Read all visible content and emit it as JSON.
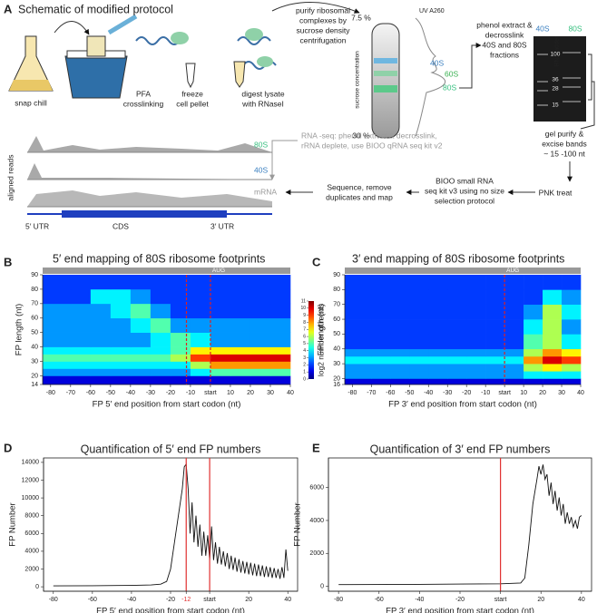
{
  "panel_a": {
    "label": "A",
    "title": "Schematic of modified protocol",
    "snap_chill": "snap chill",
    "pfa": [
      "PFA",
      "crosslinking"
    ],
    "freeze": [
      "freeze",
      "cell pellet"
    ],
    "digest": [
      "digest lysate",
      "with RNaseI"
    ],
    "purify": [
      "purify ribosomal",
      "complexes by",
      "sucrose density",
      "centrifugation"
    ],
    "gradient_top": "7.5 %",
    "gradient_bottom": "30 %",
    "gradient_axis": "sucrose concentration",
    "uv": "UV A260",
    "peaks": [
      "40S",
      "60S",
      "80S"
    ],
    "phenol": [
      "phenol extract &",
      "decrosslink",
      "40S and 80S",
      "fractions"
    ],
    "gel_lanes": [
      "40S",
      "RNA ladder",
      "80S"
    ],
    "ladder": [
      "100",
      "36",
      "28",
      "15"
    ],
    "gel_purify": [
      "gel purify &",
      "excise bands",
      "~ 15 -100 nt"
    ],
    "pnk": "PNK treat",
    "bioo": [
      "BIOO small RNA",
      "seq kit v3 using no size",
      "selection protocol"
    ],
    "sequence": [
      "Sequence, remove",
      "duplicates and map"
    ],
    "rnaseq": [
      "RNA -seq: phenol extract & decrosslink,",
      "rRNA deplete,  use BIOO qRNA seq kit v2"
    ],
    "tracks": [
      "80S",
      "40S",
      "mRNA"
    ],
    "tracks_axis": "aligned reads",
    "gene": [
      "5′ UTR",
      "CDS",
      "3′ UTR"
    ]
  },
  "chart_data": [
    {
      "type": "heatmap",
      "label": "B",
      "title": "5′ end mapping of 80S ribosome footprints",
      "xlabel": "FP 5′ end position from start codon (nt)",
      "ylabel": "FP length (nt)",
      "top_bar_label": "AUG",
      "x_edges": [
        -84,
        -70,
        -60,
        -50,
        -40,
        -30,
        -20,
        -10,
        0,
        10,
        20,
        30,
        40
      ],
      "y_edges": [
        14,
        20,
        25,
        30,
        35,
        40,
        50,
        60,
        70,
        80,
        90
      ],
      "values": [
        [
          1,
          1,
          1,
          1,
          1,
          1,
          1,
          1,
          1,
          1,
          1,
          1
        ],
        [
          3,
          3,
          3,
          3,
          3,
          3,
          3,
          4,
          5,
          5,
          5,
          5
        ],
        [
          4,
          4,
          4,
          4,
          4,
          4,
          4,
          6,
          8,
          8,
          8,
          8
        ],
        [
          5,
          5,
          5,
          5,
          5,
          5,
          6,
          9,
          10,
          10,
          10,
          10
        ],
        [
          4,
          4,
          4,
          4,
          4,
          4,
          5,
          7,
          7,
          7,
          7,
          7
        ],
        [
          3,
          3,
          3,
          3,
          3,
          4,
          5,
          4,
          3,
          3,
          3,
          3
        ],
        [
          3,
          3,
          3,
          3,
          4,
          5,
          3,
          3,
          3,
          3,
          3,
          3
        ],
        [
          3,
          3,
          3,
          4,
          5,
          3,
          2,
          2,
          2,
          2,
          2,
          2
        ],
        [
          2,
          2,
          4,
          4,
          3,
          2,
          2,
          2,
          2,
          2,
          2,
          2
        ],
        [
          2,
          2,
          2,
          2,
          2,
          2,
          2,
          2,
          2,
          2,
          2,
          2
        ]
      ],
      "xlim": [
        -84,
        40
      ],
      "ylim": [
        14,
        90
      ],
      "xticks": [
        -80,
        -70,
        -60,
        -50,
        -40,
        -30,
        -20,
        -10,
        {
          "value": 0,
          "label": "start"
        },
        10,
        20,
        30,
        40
      ],
      "yticks": [
        14,
        20,
        30,
        40,
        50,
        60,
        70,
        80,
        90
      ],
      "vlines": [
        -12,
        0
      ],
      "vline_color": "#e02020",
      "vline_dashed": true,
      "colorbar": {
        "label": "log2 number of reads",
        "lim": [
          0,
          11
        ],
        "ticks": [
          0,
          1,
          2,
          3,
          4,
          5,
          6,
          7,
          8,
          9,
          10,
          11
        ]
      }
    },
    {
      "type": "heatmap",
      "label": "C",
      "title": "3′ end mapping of 80S ribosome footprints",
      "xlabel": "FP 3′ end position from start codon (nt)",
      "ylabel": "FP length (nt)",
      "top_bar_label": "AUG",
      "x_edges": [
        -84,
        -70,
        -60,
        -50,
        -40,
        -30,
        -20,
        -10,
        0,
        10,
        20,
        30,
        40
      ],
      "y_edges": [
        16,
        20,
        25,
        30,
        35,
        40,
        50,
        60,
        70,
        80,
        90
      ],
      "values": [
        [
          1,
          1,
          1,
          1,
          1,
          1,
          1,
          1,
          1,
          1,
          1,
          1
        ],
        [
          3,
          3,
          3,
          3,
          3,
          3,
          3,
          3,
          3,
          4,
          4,
          4
        ],
        [
          3,
          3,
          3,
          3,
          3,
          3,
          3,
          3,
          3,
          6,
          7,
          6
        ],
        [
          4,
          4,
          4,
          4,
          4,
          4,
          4,
          4,
          4,
          8,
          10,
          9
        ],
        [
          3,
          3,
          3,
          3,
          3,
          3,
          3,
          3,
          3,
          6,
          8,
          7
        ],
        [
          2,
          2,
          2,
          2,
          2,
          2,
          2,
          2,
          2,
          5,
          6,
          4
        ],
        [
          2,
          2,
          2,
          2,
          2,
          2,
          2,
          2,
          2,
          4,
          6,
          3
        ],
        [
          2,
          2,
          2,
          2,
          2,
          2,
          2,
          2,
          2,
          3,
          6,
          4
        ],
        [
          2,
          2,
          2,
          2,
          2,
          2,
          2,
          2,
          2,
          2,
          4,
          3
        ],
        [
          2,
          2,
          2,
          2,
          2,
          2,
          2,
          2,
          2,
          2,
          2,
          2
        ]
      ],
      "xlim": [
        -84,
        40
      ],
      "ylim": [
        16,
        90
      ],
      "xticks": [
        -80,
        -70,
        -60,
        -50,
        -40,
        -30,
        -20,
        -10,
        {
          "value": 0,
          "label": "start"
        },
        10,
        20,
        30,
        40
      ],
      "yticks": [
        16,
        20,
        30,
        40,
        50,
        60,
        70,
        80,
        90
      ],
      "vlines": [
        0
      ],
      "vline_color": "#e02020",
      "vline_dashed": true
    },
    {
      "type": "line",
      "label": "D",
      "title": "Quantification of 5′ end FP numbers",
      "xlabel": "FP 5′ end position from start codon (nt)",
      "ylabel": "FP Number",
      "color": "#111111",
      "x": [
        -80,
        -60,
        -40,
        -30,
        -25,
        -22,
        -20,
        -18,
        -16,
        -14,
        -13,
        -12,
        -11,
        -10,
        -9,
        -8,
        -7,
        -6,
        -5,
        -4,
        -3,
        -2,
        -1,
        0,
        1,
        2,
        3,
        4,
        5,
        6,
        7,
        8,
        9,
        10,
        11,
        12,
        13,
        14,
        15,
        16,
        17,
        18,
        19,
        20,
        21,
        22,
        23,
        24,
        25,
        26,
        27,
        28,
        29,
        30,
        31,
        32,
        33,
        34,
        35,
        36,
        37,
        38,
        39,
        40
      ],
      "values": [
        100,
        120,
        150,
        200,
        300,
        600,
        2000,
        5000,
        8000,
        11000,
        13500,
        13800,
        11000,
        6000,
        9500,
        5000,
        8000,
        4500,
        7000,
        3500,
        6200,
        3500,
        5800,
        3000,
        6800,
        3000,
        5000,
        2600,
        4500,
        2500,
        4000,
        2300,
        3800,
        2000,
        3500,
        1900,
        3300,
        1700,
        3100,
        1600,
        2900,
        1500,
        2800,
        1400,
        2700,
        1300,
        2600,
        1200,
        2500,
        1200,
        2400,
        1100,
        2300,
        1100,
        2200,
        1000,
        2100,
        1000,
        2000,
        900,
        2200,
        1000,
        4200,
        1800
      ],
      "xlim": [
        -85,
        45
      ],
      "ylim": [
        -500,
        14500
      ],
      "xticks": [
        -80,
        -60,
        -40,
        -20,
        -12,
        {
          "value": 0,
          "label": "start"
        },
        20,
        40
      ],
      "yticks": [
        0,
        2000,
        4000,
        6000,
        8000,
        10000,
        12000,
        14000
      ],
      "vlines": [
        -12,
        0
      ],
      "vline_color": "#e03030"
    },
    {
      "type": "line",
      "label": "E",
      "title": "Quantification of 3′ end FP numbers",
      "xlabel": "FP 3′ end position from start codon (nt)",
      "ylabel": "FP Number",
      "color": "#111111",
      "x": [
        -80,
        -40,
        0,
        10,
        12,
        14,
        16,
        18,
        19,
        20,
        21,
        22,
        23,
        24,
        25,
        26,
        27,
        28,
        29,
        30,
        31,
        32,
        33,
        34,
        35,
        36,
        37,
        38,
        39,
        40
      ],
      "values": [
        100,
        120,
        150,
        200,
        500,
        2500,
        5000,
        6500,
        7300,
        6800,
        7400,
        6500,
        6800,
        5500,
        6300,
        5000,
        5800,
        4600,
        5400,
        4300,
        5000,
        3800,
        4500,
        3800,
        4200,
        3600,
        4000,
        3500,
        4200,
        4300
      ],
      "xlim": [
        -85,
        45
      ],
      "ylim": [
        -300,
        7800
      ],
      "xticks": [
        -80,
        -60,
        -40,
        -20,
        {
          "value": 0,
          "label": "start"
        },
        20,
        40
      ],
      "yticks": [
        0,
        2000,
        4000,
        6000
      ],
      "vlines": [
        0
      ],
      "vline_color": "#e03030"
    }
  ]
}
